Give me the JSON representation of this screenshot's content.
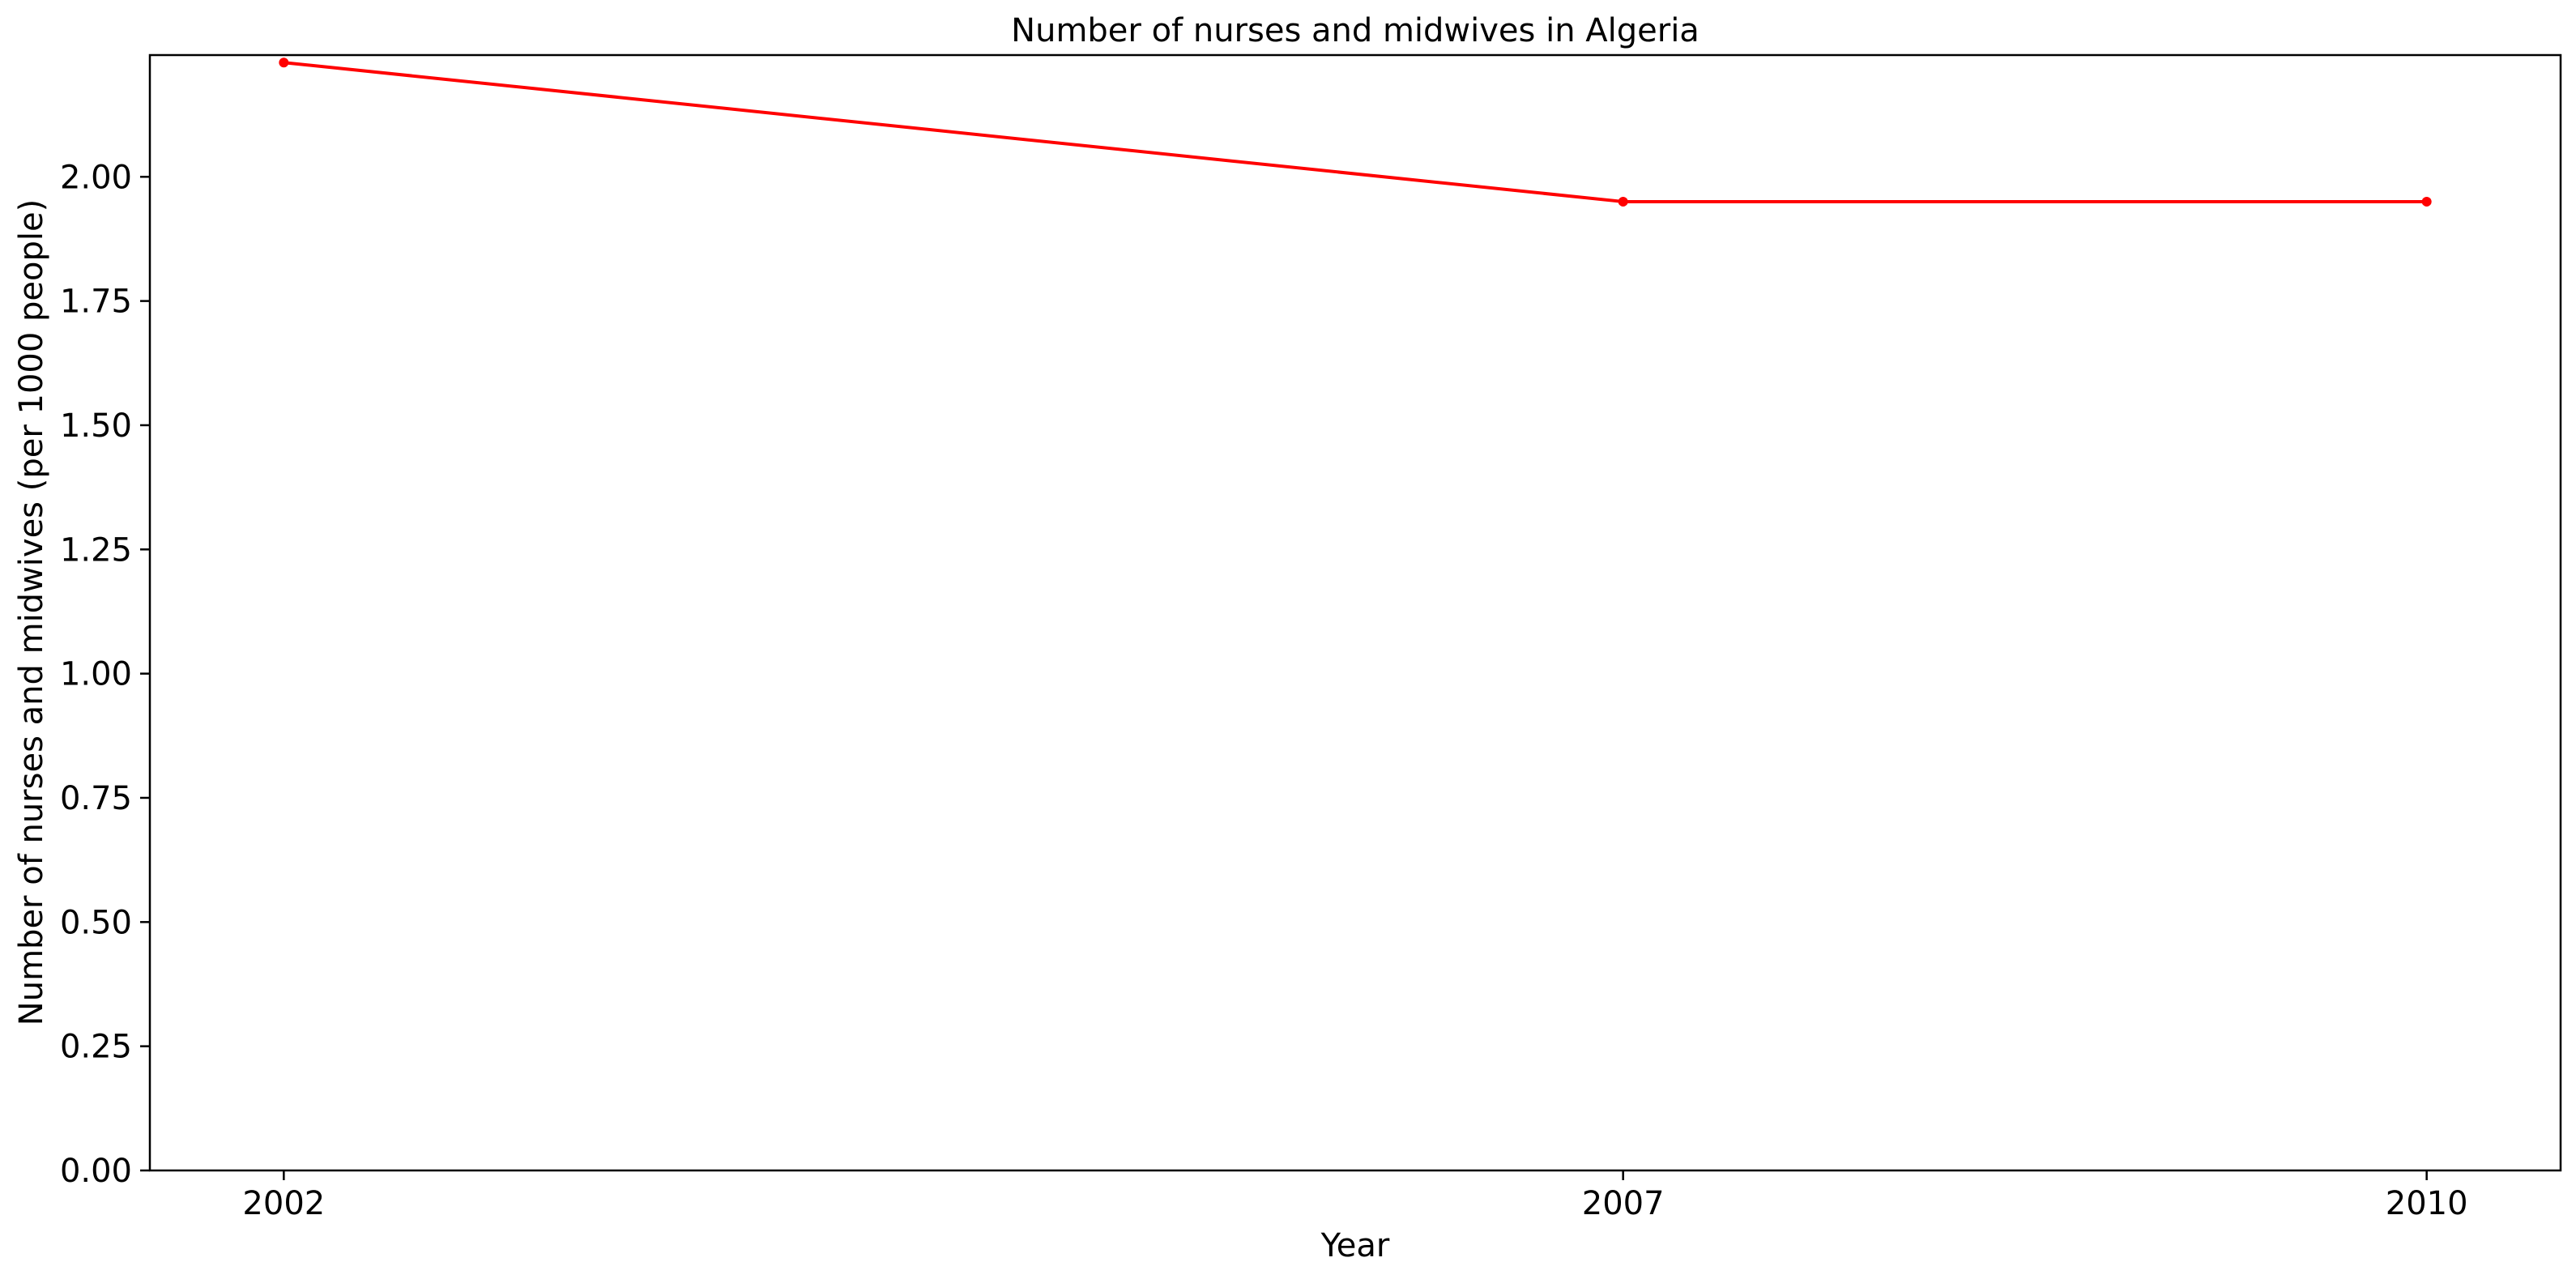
{
  "chart_data": {
    "type": "line",
    "title": "Number of nurses and midwives in Algeria",
    "xlabel": "Year",
    "ylabel": "Number of nurses and midwives (per 1000 people)",
    "categories": [
      "2002",
      "2007",
      "2010"
    ],
    "x": [
      2002,
      2007,
      2010
    ],
    "series": [
      {
        "values": [
          2.23,
          1.95,
          1.95
        ],
        "color": "#ff0000"
      }
    ],
    "x_tick_labels": [
      "2002",
      "2007",
      "2010"
    ],
    "y_ticks": [
      0,
      0.25,
      0.5,
      0.75,
      1.0,
      1.25,
      1.5,
      1.75,
      2.0
    ],
    "y_tick_labels": [
      "0.00",
      "0.25",
      "0.50",
      "0.75",
      "1.00",
      "1.25",
      "1.50",
      "1.75",
      "2.00"
    ],
    "xlim": [
      2001.5,
      2010.5
    ],
    "ylim": [
      0,
      2.245
    ],
    "grid": false,
    "legend": "none"
  }
}
